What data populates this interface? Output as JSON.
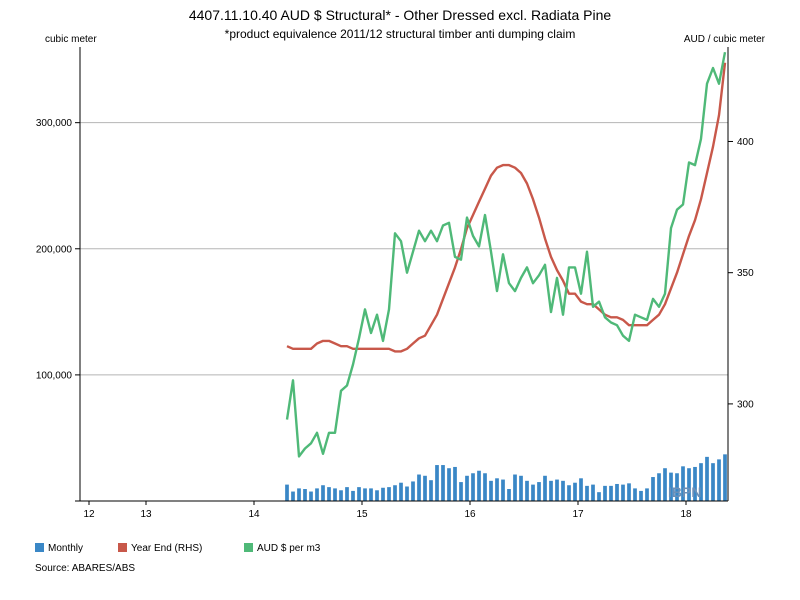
{
  "chart_data": {
    "type": "bar",
    "title": "4407.11.10.40 AUD $ Structural* - Other Dressed excl. Radiata Pine",
    "subtitle": "*product equivalence 2011/12 structural timber anti dumping claim",
    "left_axis_unit": "cubic meter",
    "right_axis_unit": "AUD / cubic meter",
    "ylim_left": [
      0,
      360000
    ],
    "ylim_right": [
      263,
      436
    ],
    "left_ticks": [
      100000,
      200000,
      300000
    ],
    "left_tick_labels": [
      "100,000",
      "200,000",
      "300,000"
    ],
    "right_ticks": [
      300,
      350,
      400
    ],
    "right_tick_labels": [
      "300",
      "350",
      "400"
    ],
    "x_labels": [
      "12",
      "13",
      "14",
      "15",
      "16",
      "17",
      "18"
    ],
    "x_label_positions": [
      1.5,
      11,
      29,
      47,
      65,
      83,
      101
    ],
    "n_periods": 108,
    "grid": "horizontal",
    "legend_position": "bottom",
    "series": [
      {
        "name": "Monthly",
        "type": "bar",
        "axis": "left",
        "color": "#3a87c6",
        "values": [
          13000,
          7500,
          10000,
          9500,
          7500,
          10000,
          12500,
          11000,
          10000,
          8500,
          11000,
          8000,
          11000,
          10000,
          10000,
          8500,
          10500,
          11000,
          12500,
          14500,
          11500,
          15500,
          21000,
          20000,
          16500,
          28500,
          28500,
          26000,
          27000,
          15000,
          20000,
          22000,
          24000,
          22000,
          16000,
          18000,
          17000,
          9500,
          21000,
          20000,
          16000,
          13000,
          15000,
          20000,
          16000,
          17000,
          16000,
          12500,
          14500,
          18000,
          12000,
          13000,
          7000,
          12000,
          12000,
          13500,
          13000,
          14000,
          10000,
          8000,
          10000,
          19000,
          22000,
          26000,
          22500,
          22000,
          27500,
          26000,
          27000,
          30000,
          35000,
          30000,
          33000,
          37000
        ]
      },
      {
        "name": "Year End (RHS)",
        "type": "line",
        "axis": "right",
        "color": "#c8584a",
        "values": [
          322,
          321,
          321,
          321,
          321,
          323,
          324,
          324,
          323,
          322,
          322,
          321,
          321,
          321,
          321,
          321,
          321,
          321,
          320,
          320,
          321,
          323,
          325,
          326,
          330,
          334,
          340,
          346,
          352,
          359,
          367,
          372,
          377,
          382,
          387,
          390,
          391,
          391,
          390,
          388,
          384,
          378,
          371,
          363,
          356,
          351,
          347,
          342,
          342,
          339,
          338,
          338,
          336,
          334,
          333,
          333,
          332,
          330,
          330,
          330,
          330,
          332,
          334,
          338,
          344,
          350,
          357,
          364,
          370,
          378,
          388,
          398,
          410,
          430
        ]
      },
      {
        "name": "AUD $ per m3",
        "type": "line",
        "axis": "right",
        "color": "#4fb978",
        "values": [
          294,
          309,
          280,
          283,
          285,
          289,
          281,
          289,
          289,
          305,
          307,
          315,
          325,
          336,
          327,
          334,
          324,
          336,
          365,
          362,
          350,
          358,
          366,
          362,
          366,
          362,
          368,
          369,
          356,
          355,
          371,
          364,
          360,
          372,
          358,
          343,
          357,
          346,
          343,
          348,
          352,
          346,
          349,
          353,
          335,
          348,
          334,
          352,
          352,
          342,
          358,
          337,
          339,
          333,
          331,
          330,
          326,
          324,
          334,
          333,
          332,
          340,
          337,
          342,
          367,
          374,
          376,
          392,
          391,
          401,
          422,
          428,
          422,
          434
        ]
      }
    ]
  },
  "source": "Source: ABARES/ABS",
  "logo_text": "IBPN"
}
